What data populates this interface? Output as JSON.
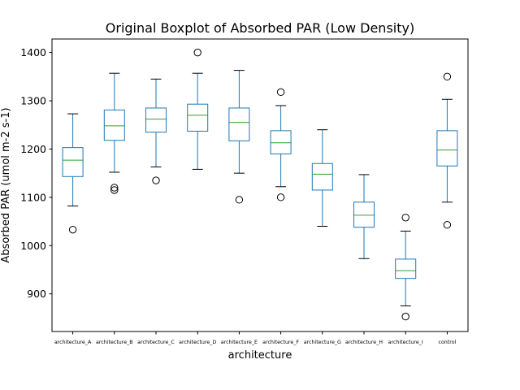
{
  "chart_data": {
    "type": "boxplot",
    "title": "Original Boxplot of Absorbed PAR (Low Density)",
    "xlabel": "architecture",
    "ylabel": "Absorbed PAR (umol m-2 s-1)",
    "ylim": [
      822,
      1428
    ],
    "yticks": [
      900,
      1000,
      1100,
      1200,
      1300,
      1400
    ],
    "grid": false,
    "legend": "none",
    "colors": {
      "box": "#1f77b4",
      "median": "#2ca02c",
      "whisker": "#000000",
      "flier": "#000000"
    },
    "categories": [
      "architecture_A",
      "architecture_B",
      "architecture_C",
      "architecture_D",
      "architecture_E",
      "architecture_F",
      "architecture_G",
      "architecture_H",
      "architecture_I",
      "control"
    ],
    "boxes": [
      {
        "whislo": 1082,
        "q1": 1143,
        "med": 1177,
        "q3": 1203,
        "whishi": 1273,
        "fliers": [
          1033
        ]
      },
      {
        "whislo": 1152,
        "q1": 1218,
        "med": 1248,
        "q3": 1281,
        "whishi": 1357,
        "fliers": [
          1115,
          1120
        ]
      },
      {
        "whislo": 1163,
        "q1": 1235,
        "med": 1262,
        "q3": 1285,
        "whishi": 1345,
        "fliers": [
          1135
        ]
      },
      {
        "whislo": 1158,
        "q1": 1237,
        "med": 1270,
        "q3": 1293,
        "whishi": 1357,
        "fliers": [
          1400
        ]
      },
      {
        "whislo": 1150,
        "q1": 1217,
        "med": 1255,
        "q3": 1285,
        "whishi": 1363,
        "fliers": [
          1095
        ]
      },
      {
        "whislo": 1122,
        "q1": 1190,
        "med": 1213,
        "q3": 1238,
        "whishi": 1290,
        "fliers": [
          1318,
          1100
        ]
      },
      {
        "whislo": 1040,
        "q1": 1115,
        "med": 1148,
        "q3": 1170,
        "whishi": 1240,
        "fliers": []
      },
      {
        "whislo": 973,
        "q1": 1038,
        "med": 1063,
        "q3": 1090,
        "whishi": 1147,
        "fliers": []
      },
      {
        "whislo": 875,
        "q1": 932,
        "med": 948,
        "q3": 972,
        "whishi": 1030,
        "fliers": [
          1058,
          853
        ]
      },
      {
        "whislo": 1090,
        "q1": 1165,
        "med": 1198,
        "q3": 1238,
        "whishi": 1303,
        "fliers": [
          1350,
          1043
        ]
      }
    ]
  }
}
